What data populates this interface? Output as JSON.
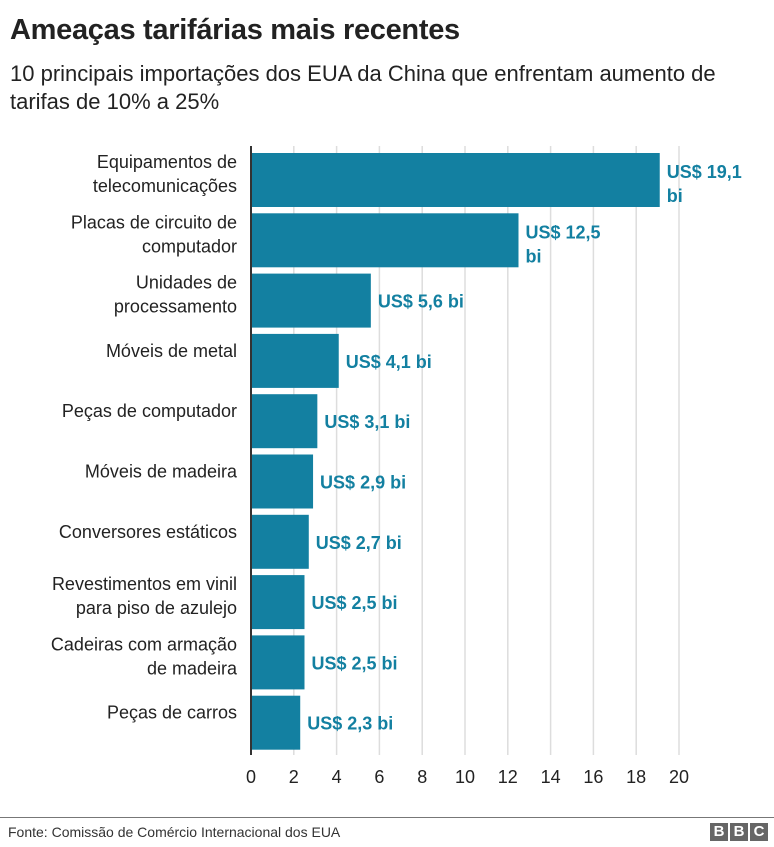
{
  "chart_data": {
    "type": "bar",
    "orientation": "horizontal",
    "title": "Ameaças tarifárias mais recentes",
    "subtitle": "10 principais importações dos EUA da China que enfrentam aumento de tarifas de 10% a 25%",
    "categories": [
      [
        "Equipamentos de",
        "telecomunicações"
      ],
      [
        "Placas de circuito de",
        "computador"
      ],
      [
        "Unidades de",
        "processamento"
      ],
      [
        "Móveis de metal"
      ],
      [
        "Peças de computador"
      ],
      [
        "Móveis de madeira"
      ],
      [
        "Conversores estáticos"
      ],
      [
        "Revestimentos em vinil",
        "para piso de azulejo"
      ],
      [
        "Cadeiras com armação",
        "de madeira"
      ],
      [
        "Peças de carros"
      ]
    ],
    "values": [
      19.1,
      12.5,
      5.6,
      4.1,
      3.1,
      2.9,
      2.7,
      2.5,
      2.5,
      2.3
    ],
    "data_labels": [
      [
        "US$ 19,1",
        "bi"
      ],
      [
        "US$ 12,5",
        "bi"
      ],
      [
        "US$ 5,6 bi"
      ],
      [
        "US$ 4,1 bi"
      ],
      [
        "US$ 3,1 bi"
      ],
      [
        "US$ 2,9 bi"
      ],
      [
        "US$ 2,7 bi"
      ],
      [
        "US$ 2,5 bi"
      ],
      [
        "US$ 2,5 bi"
      ],
      [
        "US$ 2,3 bi"
      ]
    ],
    "xlim": [
      0,
      20
    ],
    "xticks": [
      "0",
      "2",
      "4",
      "6",
      "8",
      "10",
      "12",
      "14",
      "16",
      "18",
      "20"
    ],
    "grid": true,
    "colors": {
      "bar": "#1380A1",
      "label": "#1380A1"
    }
  },
  "footer": {
    "source": "Fonte: Comissão de Comércio Internacional dos EUA",
    "logo": "BBC"
  }
}
